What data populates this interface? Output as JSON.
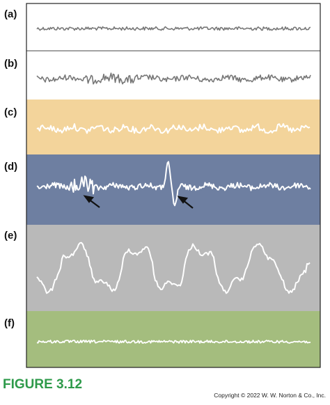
{
  "panels": [
    {
      "label": "(a)"
    },
    {
      "label": "(b)"
    },
    {
      "label": "(c)"
    },
    {
      "label": "(d)"
    },
    {
      "label": "(e)"
    },
    {
      "label": "(f)"
    }
  ],
  "figure_label": "FIGURE 3.12",
  "copyright": "Copyright © 2022 W. W. Norton & Co., Inc."
}
